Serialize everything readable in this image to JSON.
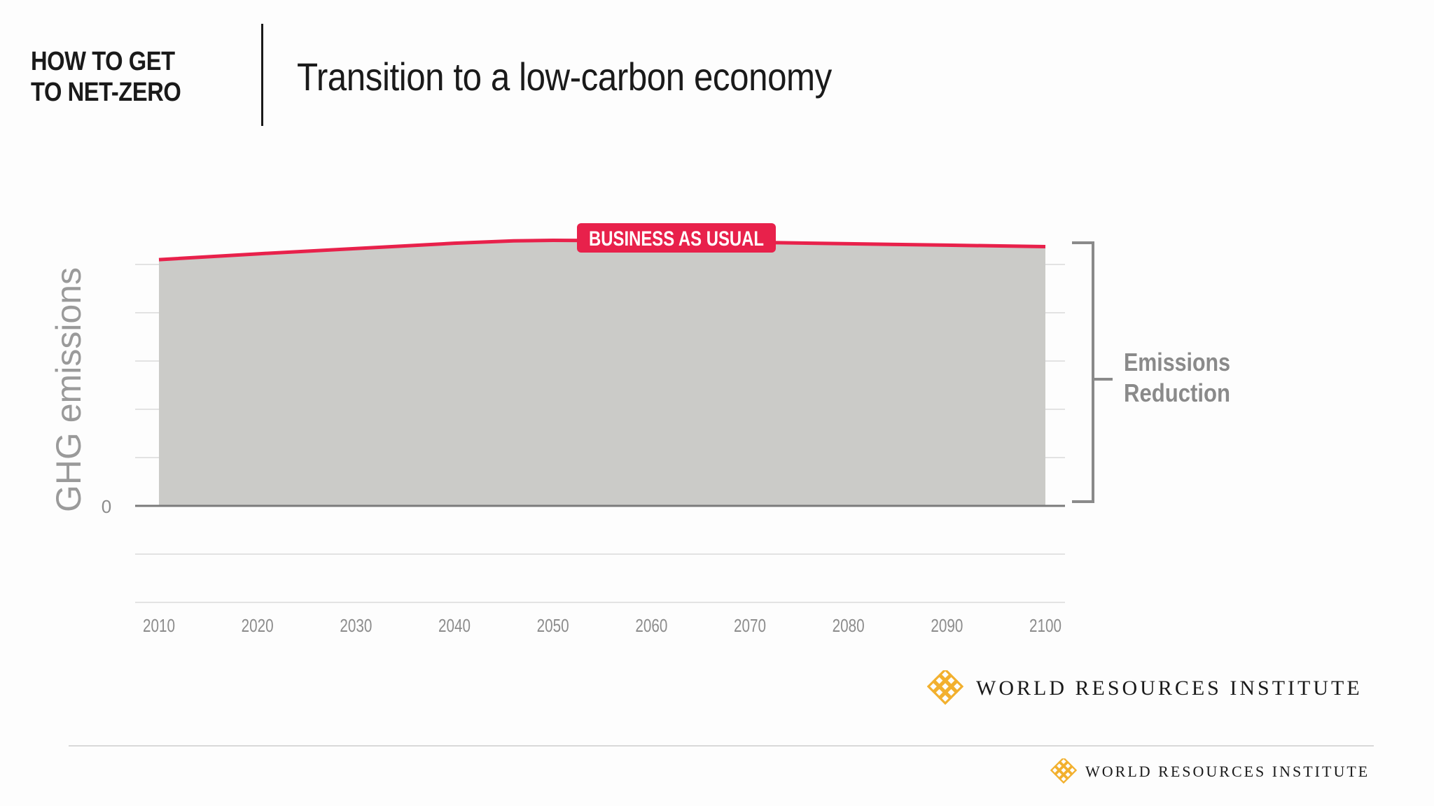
{
  "header": {
    "series_title_line1": "HOW TO GET",
    "series_title_line2": "TO NET-ZERO",
    "chart_title": "Transition to a low-carbon economy"
  },
  "chart_data": {
    "type": "area",
    "title": "Transition to a low-carbon economy",
    "xlabel": "",
    "ylabel": "GHG emissions",
    "x": [
      2010,
      2020,
      2030,
      2040,
      2050,
      2060,
      2070,
      2080,
      2090,
      2100
    ],
    "x_tick_labels": [
      "2010",
      "2020",
      "2030",
      "2040",
      "2050",
      "2060",
      "2070",
      "2080",
      "2090",
      "2100"
    ],
    "xlim": [
      2010,
      2100
    ],
    "y_tick_labels": [
      "0"
    ],
    "ylim": [
      -2,
      5
    ],
    "grid": true,
    "series": [
      {
        "name": "BUSINESS AS USUAL",
        "x": [
          2010,
          2020,
          2030,
          2040,
          2046,
          2050,
          2060,
          2070,
          2080,
          2090,
          2100
        ],
        "values": [
          5.1,
          5.22,
          5.33,
          5.44,
          5.49,
          5.5,
          5.49,
          5.46,
          5.43,
          5.4,
          5.37
        ],
        "color": "#e8214b"
      }
    ],
    "annotations": [
      {
        "text": "Emissions",
        "type": "bracket-label"
      },
      {
        "text": "Reduction",
        "type": "bracket-label"
      }
    ]
  },
  "colors": {
    "bau_line": "#e8214b",
    "area_fill": "#cbcbc8",
    "grid": "#e3e3e3",
    "axis_text": "#8c8c8c",
    "bracket": "#8a8a8a",
    "brand_mark": "#f2b02e"
  },
  "logos": {
    "primary": "WORLD RESOURCES INSTITUTE",
    "footer": "WORLD RESOURCES INSTITUTE",
    "mark_icon": "wri-lattice-icon"
  }
}
